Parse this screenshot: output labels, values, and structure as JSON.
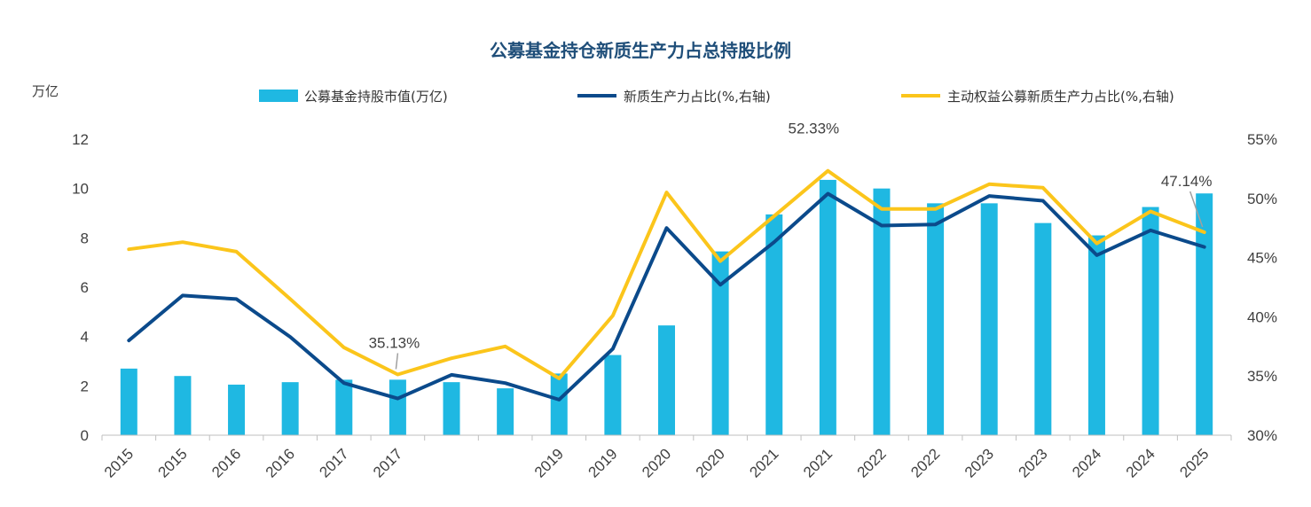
{
  "chart_data": {
    "type": "bar",
    "title": "公募基金持仓新质生产力占总持股比例",
    "left_unit": "万亿",
    "categories": [
      "2015",
      "2015",
      "2016",
      "2016",
      "2017",
      "2017",
      "",
      "",
      "2019",
      "2019",
      "2020",
      "2020",
      "2021",
      "2021",
      "2022",
      "2022",
      "2023",
      "2023",
      "2024",
      "2024",
      "2025"
    ],
    "y_left": {
      "lim": [
        0,
        12
      ],
      "ticks": [
        "0",
        "2",
        "4",
        "6",
        "8",
        "10",
        "12"
      ]
    },
    "y_right": {
      "lim": [
        30,
        55
      ],
      "ticks": [
        "30%",
        "35%",
        "40%",
        "45%",
        "50%",
        "55%"
      ]
    },
    "series": [
      {
        "name": "公募基金持股市值(万亿)",
        "type": "bar",
        "axis": "left",
        "color": "#1fb8e2",
        "values": [
          2.7,
          2.4,
          2.05,
          2.15,
          2.25,
          2.25,
          2.15,
          1.9,
          2.5,
          3.25,
          4.45,
          7.45,
          8.95,
          10.35,
          10.0,
          9.4,
          9.4,
          8.6,
          8.1,
          9.25,
          9.8
        ]
      },
      {
        "name": "新质生产力占比(%,右轴)",
        "type": "line",
        "axis": "right",
        "color": "#0b4a8b",
        "values": [
          38.0,
          41.8,
          41.5,
          38.3,
          34.4,
          33.1,
          35.1,
          34.4,
          33.0,
          37.3,
          47.5,
          42.7,
          46.3,
          50.4,
          47.7,
          47.8,
          50.2,
          49.8,
          45.2,
          47.3,
          45.9
        ]
      },
      {
        "name": "主动权益公募新质生产力占比(%,右轴)",
        "type": "line",
        "axis": "right",
        "color": "#fbc51b",
        "values": [
          45.7,
          46.3,
          45.5,
          41.5,
          37.4,
          35.13,
          36.5,
          37.5,
          34.8,
          40.1,
          50.5,
          44.7,
          48.5,
          52.33,
          49.1,
          49.1,
          51.2,
          50.9,
          46.2,
          48.9,
          47.14
        ]
      }
    ],
    "annotations": [
      {
        "text": "35.13%",
        "series": 2,
        "index": 5
      },
      {
        "text": "52.33%",
        "series": 2,
        "index": 13
      },
      {
        "text": "47.14%",
        "series": 2,
        "index": 20
      }
    ],
    "legend_position": "top",
    "grid": false
  }
}
